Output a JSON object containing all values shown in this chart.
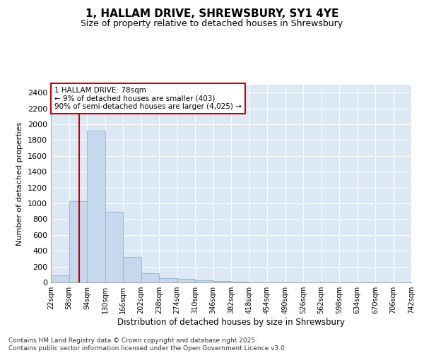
{
  "title": "1, HALLAM DRIVE, SHREWSBURY, SY1 4YE",
  "subtitle": "Size of property relative to detached houses in Shrewsbury",
  "xlabel": "Distribution of detached houses by size in Shrewsbury",
  "ylabel": "Number of detached properties",
  "property_size": 78,
  "property_label": "1 HALLAM DRIVE: 78sqm",
  "annotation_line1": "← 9% of detached houses are smaller (403)",
  "annotation_line2": "90% of semi-detached houses are larger (4,025) →",
  "footer_line1": "Contains HM Land Registry data © Crown copyright and database right 2025.",
  "footer_line2": "Contains public sector information licensed under the Open Government Licence v3.0.",
  "bins": [
    22,
    58,
    94,
    130,
    166,
    202,
    238,
    274,
    310,
    346,
    382,
    418,
    454,
    490,
    526,
    562,
    598,
    634,
    670,
    706,
    742
  ],
  "bar_values": [
    90,
    1030,
    1920,
    890,
    320,
    115,
    55,
    45,
    30,
    18,
    10,
    0,
    0,
    0,
    0,
    0,
    0,
    0,
    0,
    0
  ],
  "bar_color": "#c5d8ed",
  "bar_edgecolor": "#8ab4d4",
  "redline_color": "#cc0000",
  "annotation_box_edgecolor": "#cc0000",
  "background_color": "#dce9f5",
  "ylim": [
    0,
    2500
  ],
  "yticks": [
    0,
    200,
    400,
    600,
    800,
    1000,
    1200,
    1400,
    1600,
    1800,
    2000,
    2200,
    2400
  ]
}
